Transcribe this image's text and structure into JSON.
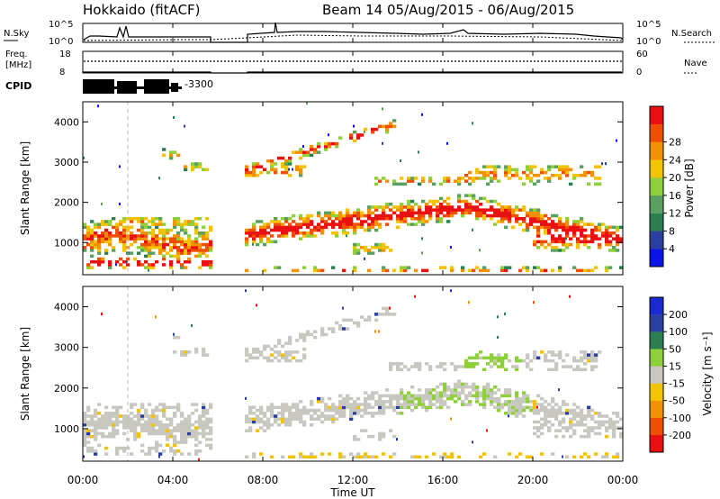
{
  "header": {
    "station": "Hokkaido (fitACF)",
    "beam_and_dates": "Beam 14 05/Aug/2015 - 06/Aug/2015"
  },
  "top_panels": {
    "nsky_label": "N.Sky",
    "nsearch_label": "N.Search",
    "noise_ticks_left": [
      "10^5",
      "10^0"
    ],
    "noise_ticks_right": [
      "10^5",
      "10^0"
    ],
    "freq_label_line1": "Freq.",
    "freq_label_line2": "[MHz]",
    "freq_ticks": [
      "18",
      "8"
    ],
    "nave_label": "Nave",
    "nave_ticks": [
      "60",
      "0"
    ],
    "cpid_label": "CPID",
    "cpid_value": "-3300"
  },
  "colors": {
    "power_scale": [
      "#0a14e6",
      "#2a3fa0",
      "#2c7f50",
      "#5aa060",
      "#8fcf3a",
      "#f2c300",
      "#f39200",
      "#f04e00",
      "#e81010"
    ],
    "velocity_scale": [
      "#e81010",
      "#f04e00",
      "#f39200",
      "#f2c300",
      "#c8c8c0",
      "#8fcf3a",
      "#2c7f50",
      "#2a3fa0",
      "#1a2ad0"
    ],
    "gap_fill": "#ffffff"
  },
  "chart_data": [
    {
      "type": "heatmap",
      "panel": "power",
      "ylabel": "Slant Range [km]",
      "yticks": [
        "1000",
        "2000",
        "3000",
        "4000"
      ],
      "ylim": [
        200,
        4500
      ],
      "colorbar_label": "Power [dB]",
      "colorbar_ticks": [
        "4",
        "8",
        "12",
        "16",
        "20",
        "24",
        "28"
      ],
      "colorbar_range": [
        0,
        32
      ],
      "data_gap_hours": [
        5.7,
        7.2
      ]
    },
    {
      "type": "heatmap",
      "panel": "velocity",
      "ylabel": "Slant Range [km]",
      "yticks": [
        "1000",
        "2000",
        "3000",
        "4000"
      ],
      "ylim": [
        200,
        4500
      ],
      "colorbar_label": "Velocity [m s⁻¹]",
      "colorbar_ticks": [
        "-200",
        "-100",
        "-50",
        "-15",
        "15",
        "50",
        "100",
        "200"
      ],
      "data_gap_hours": [
        5.7,
        7.2
      ]
    }
  ],
  "xaxis": {
    "xlabel": "Time UT",
    "ticks": [
      "00:00",
      "04:00",
      "08:00",
      "12:00",
      "16:00",
      "20:00",
      "00:00"
    ],
    "range_hours": [
      0,
      24
    ]
  }
}
